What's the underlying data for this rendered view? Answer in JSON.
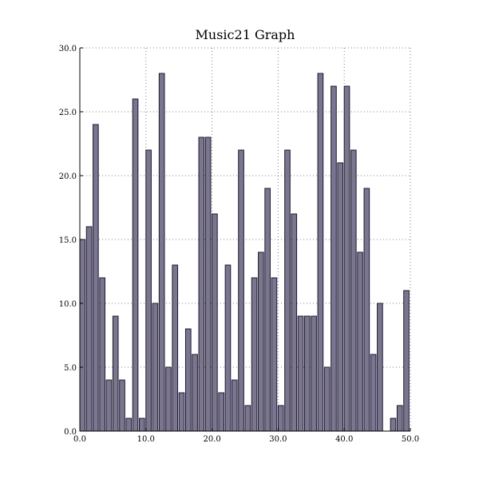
{
  "chart_data": {
    "type": "bar",
    "title": "Music21 Graph",
    "xlabel": "",
    "ylabel": "",
    "xlim": [
      0,
      50
    ],
    "ylim": [
      0,
      30
    ],
    "grid": true,
    "bar_color": "#7b7590",
    "bar_edge_color": "#1a1a2e",
    "x_ticks": [
      "0.0",
      "10.0",
      "20.0",
      "30.0",
      "40.0",
      "50.0"
    ],
    "x_tick_values": [
      0,
      10,
      20,
      30,
      40,
      50
    ],
    "y_ticks": [
      "0.0",
      "5.0",
      "10.0",
      "15.0",
      "20.0",
      "25.0",
      "30.0"
    ],
    "y_tick_values": [
      0,
      5,
      10,
      15,
      20,
      25,
      30
    ],
    "x": [
      0,
      1,
      2,
      3,
      4,
      5,
      6,
      7,
      8,
      9,
      10,
      11,
      12,
      13,
      14,
      15,
      16,
      17,
      18,
      19,
      20,
      21,
      22,
      23,
      24,
      25,
      26,
      27,
      28,
      29,
      30,
      31,
      32,
      33,
      34,
      35,
      36,
      37,
      38,
      39,
      40,
      41,
      42,
      43,
      44,
      45,
      46,
      47,
      48,
      49
    ],
    "values": [
      15,
      16,
      24,
      12,
      4,
      9,
      4,
      1,
      26,
      1,
      22,
      10,
      28,
      5,
      13,
      3,
      8,
      6,
      23,
      23,
      17,
      3,
      13,
      4,
      22,
      2,
      12,
      14,
      19,
      12,
      2,
      22,
      17,
      9,
      9,
      9,
      28,
      5,
      27,
      21,
      27,
      22,
      14,
      19,
      6,
      10,
      0,
      1,
      2,
      11
    ]
  }
}
